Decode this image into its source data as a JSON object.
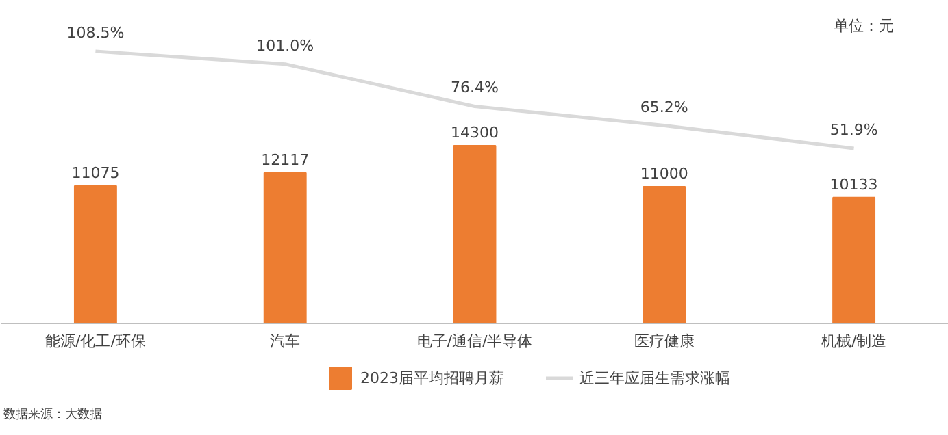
{
  "chart_data": {
    "type": "bar",
    "categories": [
      "能源/化工/环保",
      "汽车",
      "电子/通信/半导体",
      "医疗健康",
      "机械/制造"
    ],
    "series": [
      {
        "name": "2023届平均招聘月薪",
        "color": "#ed7d31",
        "values": [
          11075,
          12117,
          14300,
          11000,
          10133
        ]
      },
      {
        "name": "近三年应届生需求涨幅",
        "type": "line",
        "axis": "y2",
        "color": "#d9d9d9",
        "values": [
          108.5,
          101.0,
          76.4,
          65.2,
          51.9
        ],
        "value_labels": [
          "108.5%",
          "101.0%",
          "76.4%",
          "65.2%",
          "51.9%"
        ]
      }
    ],
    "y2lim": [
      -115.6,
      138.0
    ],
    "data_labels": true,
    "legend": "bottom",
    "grid": false,
    "tick_labels": "x",
    "annotations": [
      "单位：元",
      "数据来源：大数据"
    ]
  }
}
